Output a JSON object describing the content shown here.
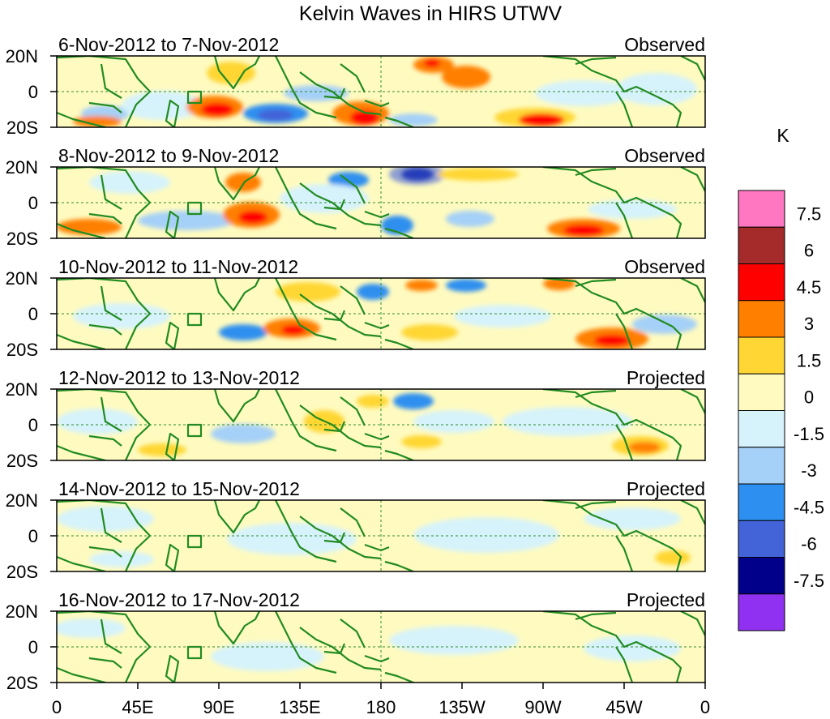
{
  "title": "Kelvin Waves in HIRS UTWV",
  "panels": [
    {
      "date_range": "6-Nov-2012 to 7-Nov-2012",
      "status": "Observed"
    },
    {
      "date_range": "8-Nov-2012 to 9-Nov-2012",
      "status": "Observed"
    },
    {
      "date_range": "10-Nov-2012 to 11-Nov-2012",
      "status": "Observed"
    },
    {
      "date_range": "12-Nov-2012 to 13-Nov-2012",
      "status": "Projected"
    },
    {
      "date_range": "14-Nov-2012 to 15-Nov-2012",
      "status": "Projected"
    },
    {
      "date_range": "16-Nov-2012 to 17-Nov-2012",
      "status": "Projected"
    }
  ],
  "lat_labels": [
    "20N",
    "0",
    "20S"
  ],
  "lon_labels": [
    "0",
    "45E",
    "90E",
    "135E",
    "180",
    "135W",
    "90W",
    "45W",
    "0"
  ],
  "colorbar": {
    "units": "K",
    "tick_labels": [
      "7.5",
      "6",
      "4.5",
      "3",
      "1.5",
      "0",
      "-1.5",
      "-3",
      "-4.5",
      "-6",
      "-7.5"
    ],
    "colors": [
      "#ff77c0",
      "#a52a2a",
      "#ff0000",
      "#ff7f00",
      "#ffd633",
      "#fffbc0",
      "#d6f3fb",
      "#a5d0f7",
      "#2d8fef",
      "#4264d8",
      "#00008b",
      "#9030f0"
    ]
  },
  "colors": {
    "coast": "#228b22",
    "grid": "#2e8b2e"
  }
}
